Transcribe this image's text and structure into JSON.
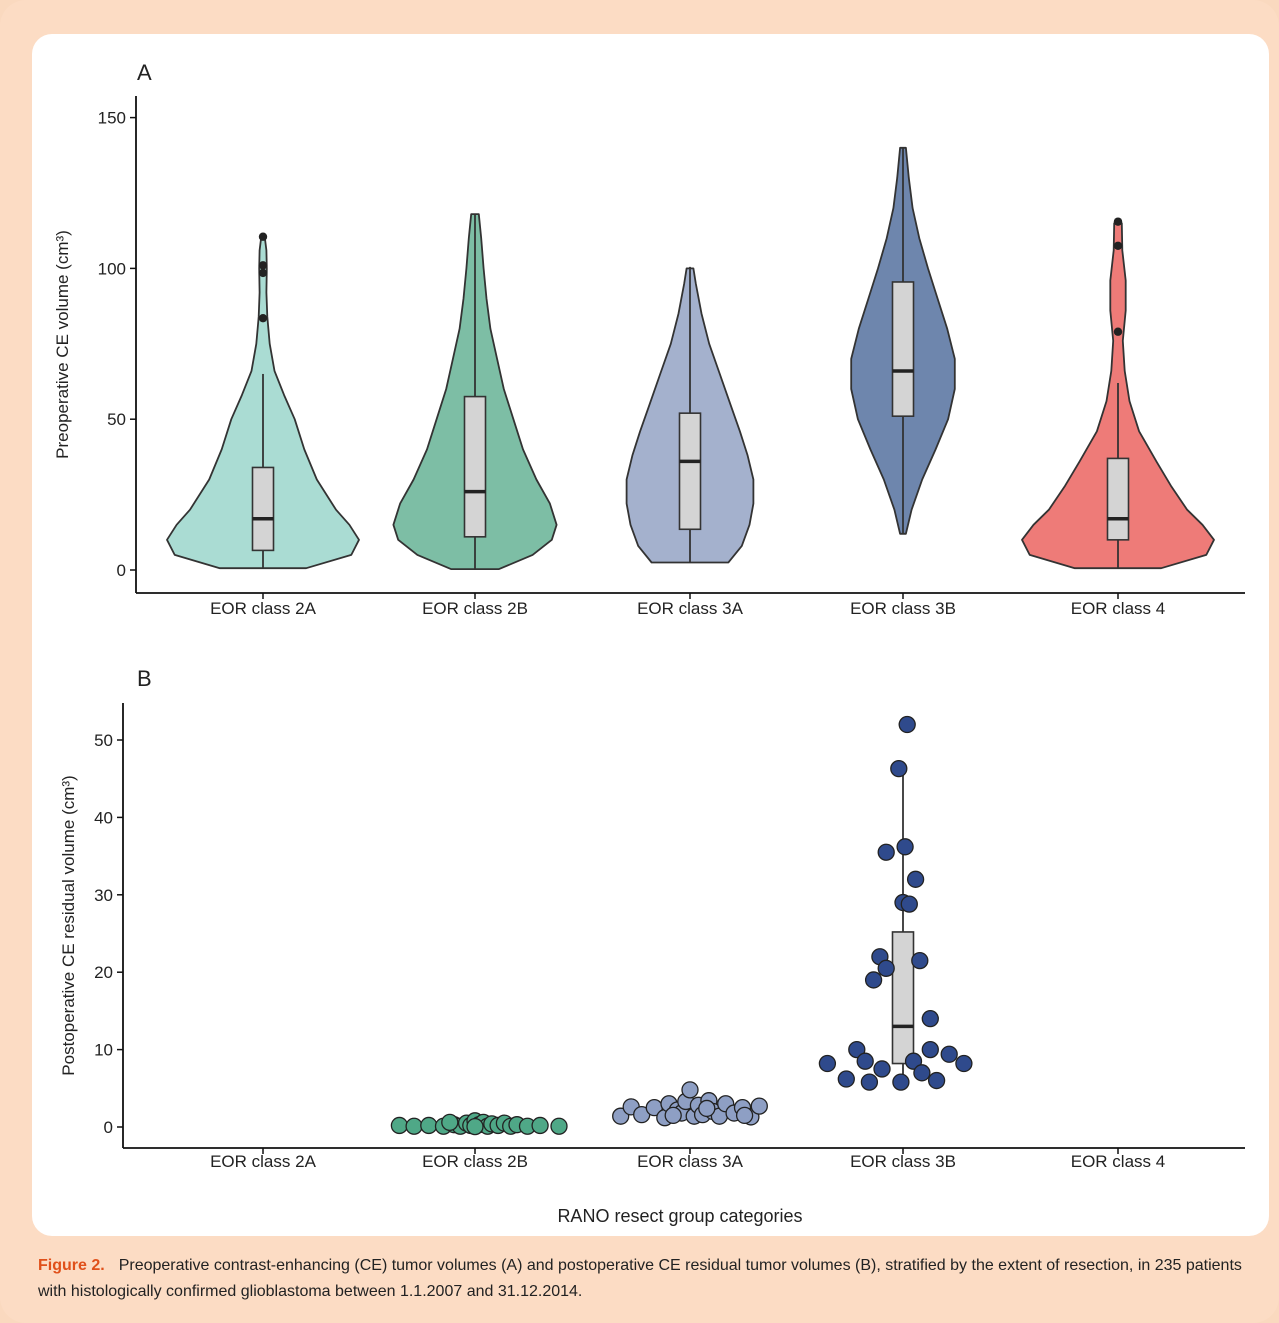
{
  "chart_data": [
    {
      "panel_label": "A",
      "type": "violin",
      "ylabel": "Preoperative CE volume (cm³)",
      "yticks": [
        0,
        50,
        100,
        150
      ],
      "ylim": [
        -7,
        157
      ],
      "categories": [
        "EOR class 2A",
        "EOR class 2B",
        "EOR class 3A",
        "EOR class 3B",
        "EOR class 4"
      ],
      "colors": [
        "#aadcd3",
        "#7dbea5",
        "#a4b1cd",
        "#6e86ad",
        "#ee7b78"
      ],
      "violins": [
        {
          "profile": [
            [
              0.6,
              0.45
            ],
            [
              5,
              0.92
            ],
            [
              10,
              1.0
            ],
            [
              15,
              0.9
            ],
            [
              20,
              0.76
            ],
            [
              30,
              0.56
            ],
            [
              40,
              0.43
            ],
            [
              50,
              0.33
            ],
            [
              58,
              0.22
            ],
            [
              66,
              0.12
            ],
            [
              75,
              0.07
            ],
            [
              84,
              0.045
            ],
            [
              92,
              0.035
            ],
            [
              100,
              0.04
            ],
            [
              106,
              0.035
            ],
            [
              110,
              0.02
            ]
          ]
        },
        {
          "profile": [
            [
              0.3,
              0.25
            ],
            [
              5,
              0.6
            ],
            [
              10,
              0.8
            ],
            [
              15,
              0.85
            ],
            [
              22,
              0.78
            ],
            [
              30,
              0.64
            ],
            [
              40,
              0.5
            ],
            [
              50,
              0.4
            ],
            [
              60,
              0.3
            ],
            [
              70,
              0.23
            ],
            [
              80,
              0.16
            ],
            [
              90,
              0.12
            ],
            [
              100,
              0.09
            ],
            [
              110,
              0.065
            ],
            [
              118,
              0.04
            ]
          ]
        },
        {
          "profile": [
            [
              2.5,
              0.4
            ],
            [
              8,
              0.54
            ],
            [
              15,
              0.62
            ],
            [
              22,
              0.66
            ],
            [
              30,
              0.66
            ],
            [
              38,
              0.6
            ],
            [
              46,
              0.52
            ],
            [
              55,
              0.42
            ],
            [
              65,
              0.31
            ],
            [
              75,
              0.2
            ],
            [
              85,
              0.12
            ],
            [
              95,
              0.06
            ],
            [
              100,
              0.035
            ]
          ]
        },
        {
          "profile": [
            [
              12,
              0.03
            ],
            [
              20,
              0.09
            ],
            [
              30,
              0.2
            ],
            [
              40,
              0.34
            ],
            [
              50,
              0.47
            ],
            [
              60,
              0.54
            ],
            [
              70,
              0.54
            ],
            [
              80,
              0.46
            ],
            [
              90,
              0.36
            ],
            [
              100,
              0.26
            ],
            [
              110,
              0.17
            ],
            [
              120,
              0.1
            ],
            [
              130,
              0.06
            ],
            [
              140,
              0.03
            ]
          ]
        },
        {
          "profile": [
            [
              0.6,
              0.45
            ],
            [
              5,
              0.92
            ],
            [
              10,
              1.0
            ],
            [
              15,
              0.88
            ],
            [
              20,
              0.72
            ],
            [
              28,
              0.55
            ],
            [
              36,
              0.4
            ],
            [
              46,
              0.22
            ],
            [
              56,
              0.12
            ],
            [
              66,
              0.07
            ],
            [
              76,
              0.05
            ],
            [
              86,
              0.08
            ],
            [
              96,
              0.08
            ],
            [
              106,
              0.045
            ],
            [
              115,
              0.04
            ]
          ]
        }
      ],
      "boxplots": [
        {
          "low": 0.6,
          "q1": 6.5,
          "median": 17,
          "q3": 34,
          "high": 65,
          "outliers": [
            83.5,
            98.5,
            101,
            110.5
          ]
        },
        {
          "low": 0.3,
          "q1": 11,
          "median": 26,
          "q3": 57.5,
          "high": 118,
          "outliers": []
        },
        {
          "low": 2.5,
          "q1": 13.5,
          "median": 36,
          "q3": 52,
          "high": 100.5,
          "outliers": []
        },
        {
          "low": 12,
          "q1": 51,
          "median": 66,
          "q3": 95.5,
          "high": 140,
          "outliers": []
        },
        {
          "low": 0.6,
          "q1": 10,
          "median": 17,
          "q3": 37,
          "high": 62,
          "outliers": [
            79,
            107.5,
            115.5
          ]
        }
      ]
    },
    {
      "panel_label": "B",
      "type": "scatter",
      "ylabel": "Postoperative CE residual volume (cm³)",
      "xlabel": "RANO resect group categories",
      "yticks": [
        0,
        10,
        20,
        30,
        40,
        50
      ],
      "ylim": [
        -2.6,
        55
      ],
      "categories": [
        "EOR class 2A",
        "EOR class 2B",
        "EOR class 3A",
        "EOR class 3B",
        "EOR class 4"
      ],
      "colors": [
        "#aadcd3",
        "#4fa887",
        "#8e9fc4",
        "#2f4a8c",
        "#ee7b78"
      ],
      "boxplots": [
        null,
        {
          "low": 0,
          "q1": 0.05,
          "median": 0.2,
          "q3": 0.5,
          "high": 1.0,
          "outliers": []
        },
        {
          "low": 1.0,
          "q1": 1.5,
          "median": 2.0,
          "q3": 2.8,
          "high": 5,
          "outliers": []
        },
        {
          "low": 5.5,
          "q1": 8.2,
          "median": 13,
          "q3": 25.2,
          "high": 46,
          "outliers": [
            52
          ]
        },
        null
      ],
      "points": [
        [],
        [
          [
            -0.36,
            0.2
          ],
          [
            -0.29,
            0.1
          ],
          [
            -0.22,
            0.2
          ],
          [
            -0.15,
            0.1
          ],
          [
            -0.1,
            0.3
          ],
          [
            -0.07,
            0.1
          ],
          [
            -0.04,
            0.5
          ],
          [
            -0.02,
            0.2
          ],
          [
            0.0,
            0.8
          ],
          [
            0.02,
            0.3
          ],
          [
            0.04,
            0.6
          ],
          [
            0.06,
            0.1
          ],
          [
            0.08,
            0.4
          ],
          [
            0.11,
            0.2
          ],
          [
            0.14,
            0.5
          ],
          [
            0.17,
            0.1
          ],
          [
            0.2,
            0.3
          ],
          [
            0.25,
            0.1
          ],
          [
            0.31,
            0.2
          ],
          [
            0.4,
            0.1
          ],
          [
            -0.12,
            0.6
          ],
          [
            0.0,
            0.05
          ]
        ],
        [
          [
            -0.33,
            1.4
          ],
          [
            -0.28,
            2.6
          ],
          [
            -0.23,
            1.6
          ],
          [
            -0.17,
            2.5
          ],
          [
            -0.12,
            1.2
          ],
          [
            -0.1,
            3.0
          ],
          [
            -0.06,
            2.2
          ],
          [
            -0.04,
            1.8
          ],
          [
            -0.02,
            3.3
          ],
          [
            0.0,
            4.8
          ],
          [
            0.02,
            1.4
          ],
          [
            0.04,
            2.8
          ],
          [
            0.06,
            1.6
          ],
          [
            0.09,
            3.4
          ],
          [
            0.11,
            2.0
          ],
          [
            0.14,
            1.4
          ],
          [
            0.17,
            3.0
          ],
          [
            0.21,
            1.8
          ],
          [
            0.25,
            2.5
          ],
          [
            0.29,
            1.3
          ],
          [
            0.33,
            2.7
          ],
          [
            0.26,
            1.5
          ],
          [
            -0.08,
            1.5
          ],
          [
            0.08,
            2.4
          ]
        ],
        [
          [
            -0.36,
            8.2
          ],
          [
            -0.27,
            6.2
          ],
          [
            -0.22,
            10
          ],
          [
            -0.18,
            8.5
          ],
          [
            -0.16,
            5.8
          ],
          [
            -0.14,
            19
          ],
          [
            -0.11,
            22
          ],
          [
            -0.1,
            7.5
          ],
          [
            -0.08,
            20.5
          ],
          [
            -0.08,
            35.5
          ],
          [
            -0.02,
            46.3
          ],
          [
            0.0,
            29
          ],
          [
            -0.01,
            5.8
          ],
          [
            0.01,
            36.2
          ],
          [
            0.02,
            52
          ],
          [
            0.03,
            28.8
          ],
          [
            0.05,
            8.5
          ],
          [
            0.06,
            32
          ],
          [
            0.08,
            21.5
          ],
          [
            0.09,
            7
          ],
          [
            0.13,
            14
          ],
          [
            0.13,
            10
          ],
          [
            0.16,
            6
          ],
          [
            0.22,
            9.4
          ],
          [
            0.29,
            8.2
          ]
        ],
        []
      ]
    }
  ],
  "caption": {
    "label": "Figure 2.",
    "text": "Preoperative contrast-enhancing (CE) tumor volumes (A) and postoperative CE residual tumor volumes (B), stratified by the extent of resection, in 235 patients with histologically confirmed glioblastoma between 1.1.2007 and 31.12.2014."
  }
}
